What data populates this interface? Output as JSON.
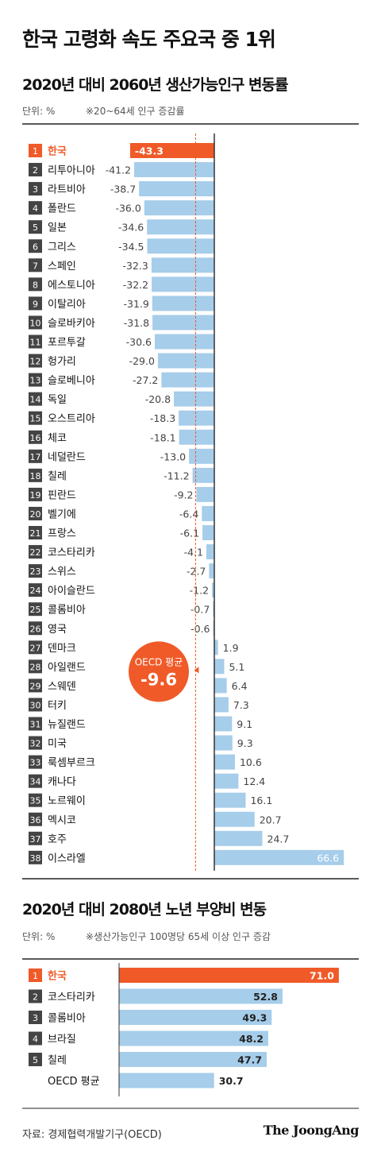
{
  "title": "한국 고령화 속도 주요국 중 1위",
  "chart1": {
    "subtitle": "2020년 대비 2060년 생산가능인구 변동률",
    "unit": "단위: %",
    "note": "※20~64세 인구 증감률",
    "oecd_label": "OECD 평균",
    "oecd_value_text": "-9.6",
    "oecd_value": -9.6
  },
  "chart2": {
    "subtitle": "2020년 대비 2080년 노년 부양비 변동",
    "unit": "단위: %",
    "note": "※생산가능인구 100명당 65세 이상 인구 증감"
  },
  "source": "자료: 경제협력개발기구(OECD)",
  "logo": "The JoongAng",
  "colors": {
    "highlight": "#f05a28",
    "bar": "#a6cdea",
    "text": "#111111"
  },
  "chart_data": [
    {
      "type": "bar",
      "orientation": "horizontal",
      "ranks": [
        "1",
        "2",
        "3",
        "4",
        "5",
        "6",
        "7",
        "8",
        "9",
        "10",
        "11",
        "12",
        "13",
        "14",
        "15",
        "16",
        "17",
        "18",
        "19",
        "20",
        "21",
        "22",
        "23",
        "24",
        "25",
        "26",
        "27",
        "28",
        "29",
        "30",
        "31",
        "32",
        "33",
        "34",
        "35",
        "36",
        "37",
        "38"
      ],
      "categories": [
        "한국",
        "리투아니아",
        "라트비아",
        "폴란드",
        "일본",
        "그리스",
        "스페인",
        "에스토니아",
        "이탈리아",
        "슬로바키아",
        "포르투갈",
        "헝가리",
        "슬로베니아",
        "독일",
        "오스트리아",
        "체코",
        "네덜란드",
        "칠레",
        "핀란드",
        "벨기에",
        "프랑스",
        "코스타리카",
        "스위스",
        "아이슬란드",
        "콜롬비아",
        "영국",
        "덴마크",
        "아일랜드",
        "스웨덴",
        "터키",
        "뉴질랜드",
        "미국",
        "룩셈부르크",
        "캐나다",
        "노르웨이",
        "멕시코",
        "호주",
        "이스라엘"
      ],
      "values": [
        -43.3,
        -41.2,
        -38.7,
        -36.0,
        -34.6,
        -34.5,
        -32.3,
        -32.2,
        -31.9,
        -31.8,
        -30.6,
        -29.0,
        -27.2,
        -20.8,
        -18.3,
        -18.1,
        -13.0,
        -11.2,
        -9.2,
        -6.4,
        -6.1,
        -4.1,
        -2.7,
        -1.2,
        -0.7,
        -0.6,
        1.9,
        5.1,
        6.4,
        7.3,
        9.1,
        9.3,
        10.6,
        12.4,
        16.1,
        20.7,
        24.7,
        66.6
      ],
      "labels": [
        "-43.3",
        "-41.2",
        "-38.7",
        "-36.0",
        "-34.6",
        "-34.5",
        "-32.3",
        "-32.2",
        "-31.9",
        "-31.8",
        "-30.6",
        "-29.0",
        "-27.2",
        "-20.8",
        "-18.3",
        "-18.1",
        "-13.0",
        "-11.2",
        "-9.2",
        "-6.4",
        "-6.1",
        "-4.1",
        "-2.7",
        "-1.2",
        "-0.7",
        "-0.6",
        "1.9",
        "5.1",
        "6.4",
        "7.3",
        "9.1",
        "9.3",
        "10.6",
        "12.4",
        "16.1",
        "20.7",
        "24.7",
        "66.6"
      ],
      "reference_line": -9.6
    },
    {
      "type": "bar",
      "orientation": "horizontal",
      "ranks": [
        "1",
        "2",
        "3",
        "4",
        "5",
        ""
      ],
      "categories": [
        "한국",
        "코스타리카",
        "콜롬비아",
        "브라질",
        "칠레",
        "OECD 평균"
      ],
      "values": [
        71.0,
        52.8,
        49.3,
        48.2,
        47.7,
        30.7
      ],
      "labels": [
        "71.0",
        "52.8",
        "49.3",
        "48.2",
        "47.7",
        "30.7"
      ]
    }
  ]
}
